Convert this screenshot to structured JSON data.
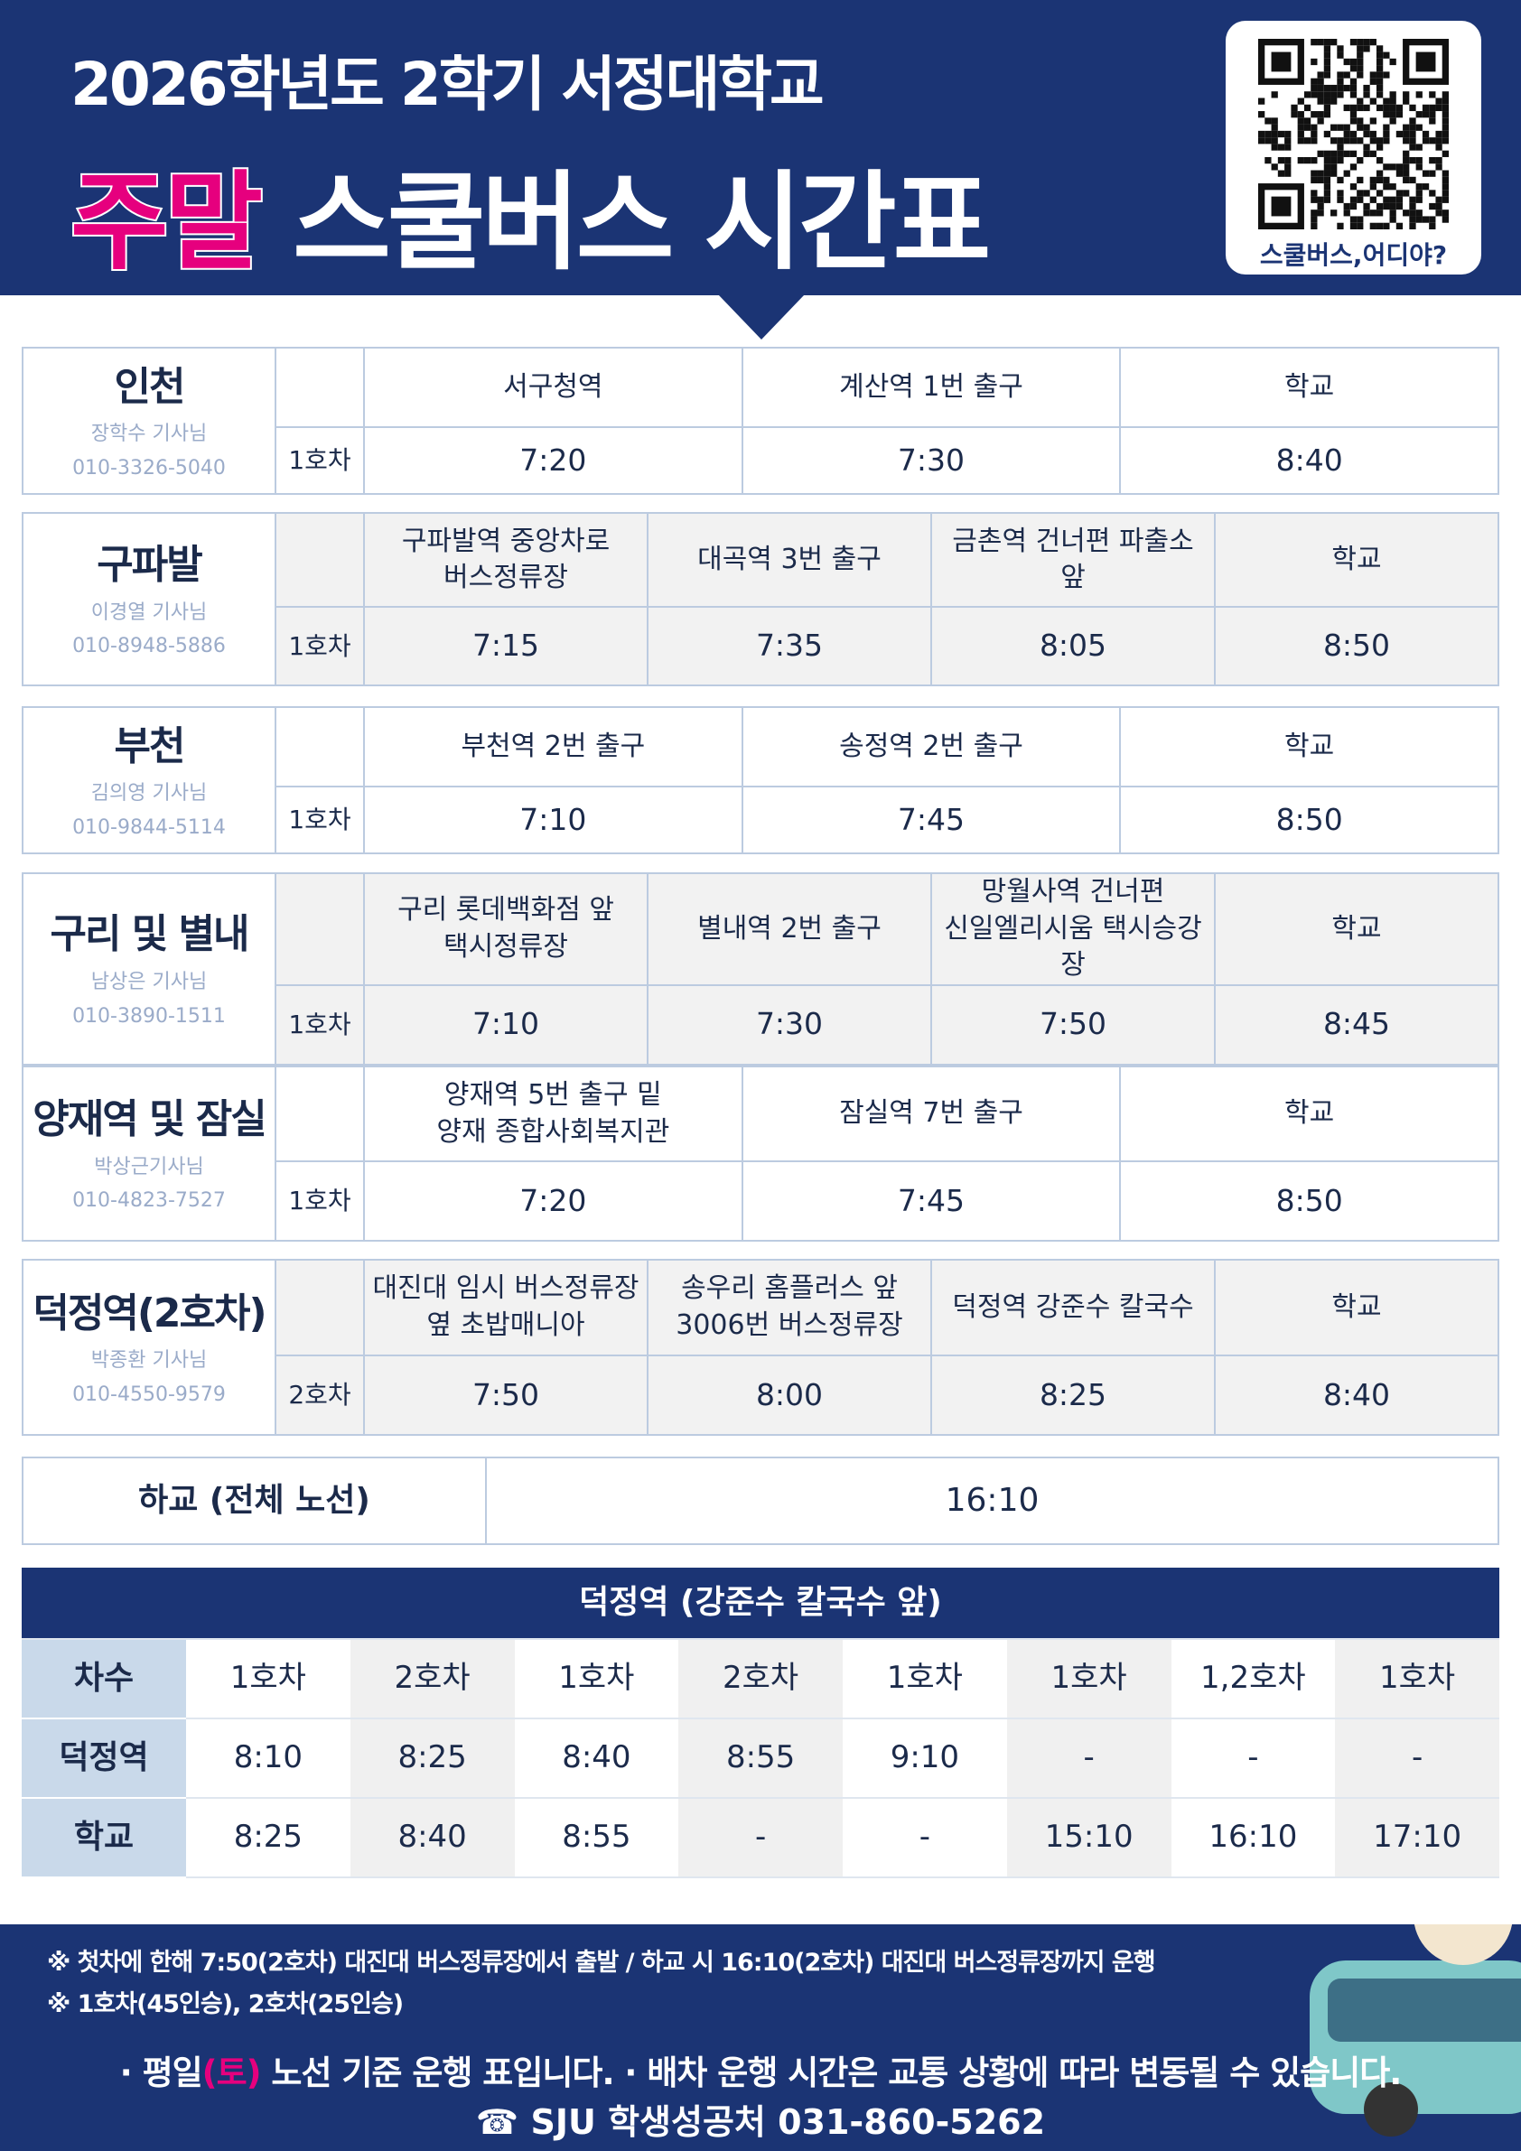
{
  "header": {
    "title_line1": "2026학년도 2학기 서정대학교",
    "title_highlight": "주말",
    "title_rest": "스쿨버스 시간표",
    "qr_caption": "스쿨버스,어디야?"
  },
  "routes": [
    {
      "name": "인천",
      "driver": "장학수 기사님",
      "phone": "010-3326-5040",
      "car": "1호차",
      "stops": [
        "서구청역",
        "계산역 1번 출구",
        "학교"
      ],
      "times": [
        "7:20",
        "7:30",
        "8:40"
      ]
    },
    {
      "name": "구파발",
      "driver": "이경열 기사님",
      "phone": "010-8948-5886",
      "car": "1호차",
      "stops": [
        "구파발역 중앙차로\n버스정류장",
        "대곡역 3번 출구",
        "금촌역 건너편 파출소 앞",
        "학교"
      ],
      "times": [
        "7:15",
        "7:35",
        "8:05",
        "8:50"
      ]
    },
    {
      "name": "부천",
      "driver": "김의영 기사님",
      "phone": "010-9844-5114",
      "car": "1호차",
      "stops": [
        "부천역 2번 출구",
        "송정역 2번 출구",
        "학교"
      ],
      "times": [
        "7:10",
        "7:45",
        "8:50"
      ]
    },
    {
      "name": "구리 및 별내",
      "driver": "남상은 기사님",
      "phone": "010-3890-1511",
      "car": "1호차",
      "stops": [
        "구리 롯데백화점 앞\n택시정류장",
        "별내역 2번 출구",
        "망월사역 건너편\n신일엘리시움 택시승강장",
        "학교"
      ],
      "times": [
        "7:10",
        "7:30",
        "7:50",
        "8:45"
      ]
    },
    {
      "name": "양재역 및 잠실",
      "driver": "박상근기사님",
      "phone": "010-4823-7527",
      "car": "1호차",
      "stops": [
        "양재역 5번 출구 밑\n양재 종합사회복지관",
        "잠실역 7번 출구",
        "학교"
      ],
      "times": [
        "7:20",
        "7:45",
        "8:50"
      ]
    },
    {
      "name": "덕정역(2호차)",
      "driver": "박종환 기사님",
      "phone": "010-4550-9579",
      "car": "2호차",
      "stops": [
        "대진대 임시 버스정류장\n옆 초밥매니아",
        "송우리 홈플러스 앞\n3006번 버스정류장",
        "덕정역 강준수 칼국수",
        "학교"
      ],
      "times": [
        "7:50",
        "8:00",
        "8:25",
        "8:40"
      ]
    }
  ],
  "return_trip": {
    "label": "하교 (전체 노선)",
    "time": "16:10"
  },
  "deokjeong": {
    "title": "덕정역 (강준수 칼국수 앞)",
    "rows": [
      {
        "label": "차수",
        "cells": [
          "1호차",
          "2호차",
          "1호차",
          "2호차",
          "1호차",
          "1호차",
          "1,2호차",
          "1호차"
        ]
      },
      {
        "label": "덕정역",
        "cells": [
          "8:10",
          "8:25",
          "8:40",
          "8:55",
          "9:10",
          "-",
          "-",
          "-"
        ]
      },
      {
        "label": "학교",
        "cells": [
          "8:25",
          "8:40",
          "8:55",
          "-",
          "-",
          "15:10",
          "16:10",
          "17:10"
        ]
      }
    ]
  },
  "footer": {
    "notes": [
      "※ 첫차에 한해 7:50(2호차) 대진대 버스정류장에서 출발 / 하교 시 16:10(2호차) 대진대 버스정류장까지 운행",
      "※ 1호차(45인승), 2호차(25인승)"
    ],
    "notice": [
      "· 평일",
      "(토)",
      " 노선 기준 운행 표입니다. · 배차 운행 시간은 교통 상황에 따라 변동될 수 있습니다."
    ],
    "contact": "☎ SJU 학생성공처 031-860-5262"
  }
}
